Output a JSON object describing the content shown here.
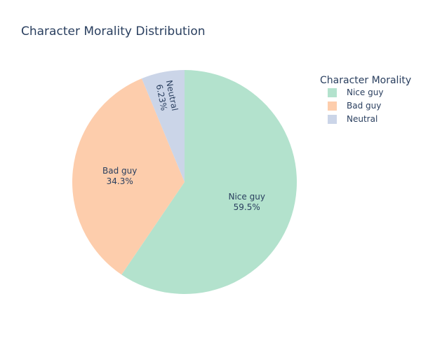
{
  "chart_data": {
    "type": "pie",
    "title": "Character Morality Distribution",
    "legend_title": "Character Morality",
    "legend_position": "top-right",
    "slices": [
      {
        "label": "Nice guy",
        "value": 59.5,
        "percent_label": "59.5%",
        "color": "#b3e2cd"
      },
      {
        "label": "Bad guy",
        "value": 34.3,
        "percent_label": "34.3%",
        "color": "#fdcdac"
      },
      {
        "label": "Neutral",
        "value": 6.23,
        "percent_label": "6.23%",
        "color": "#cbd5e8"
      }
    ]
  }
}
